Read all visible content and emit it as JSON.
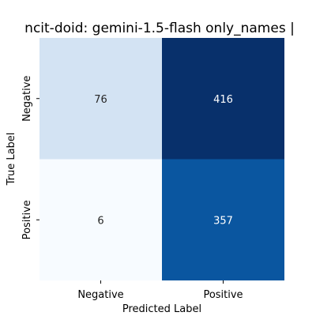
{
  "chart_data": {
    "type": "heatmap",
    "title": "ncit-doid: gemini-1.5-flash only_names |",
    "xlabel": "Predicted Label",
    "ylabel": "True Label",
    "x_categories": [
      "Negative",
      "Positive"
    ],
    "y_categories": [
      "Negative",
      "Positive"
    ],
    "values": [
      [
        76,
        416
      ],
      [
        6,
        357
      ]
    ],
    "colormap": "Blues",
    "grid": false,
    "colorbar": false
  },
  "colors": {
    "cell_negative_negative": "#d3e3f3",
    "cell_negative_positive": "#08306b",
    "cell_positive_negative": "#f7fbff",
    "cell_positive_positive": "#0a56a0",
    "text_on_light": "#262626",
    "text_on_dark": "#ffffff"
  }
}
